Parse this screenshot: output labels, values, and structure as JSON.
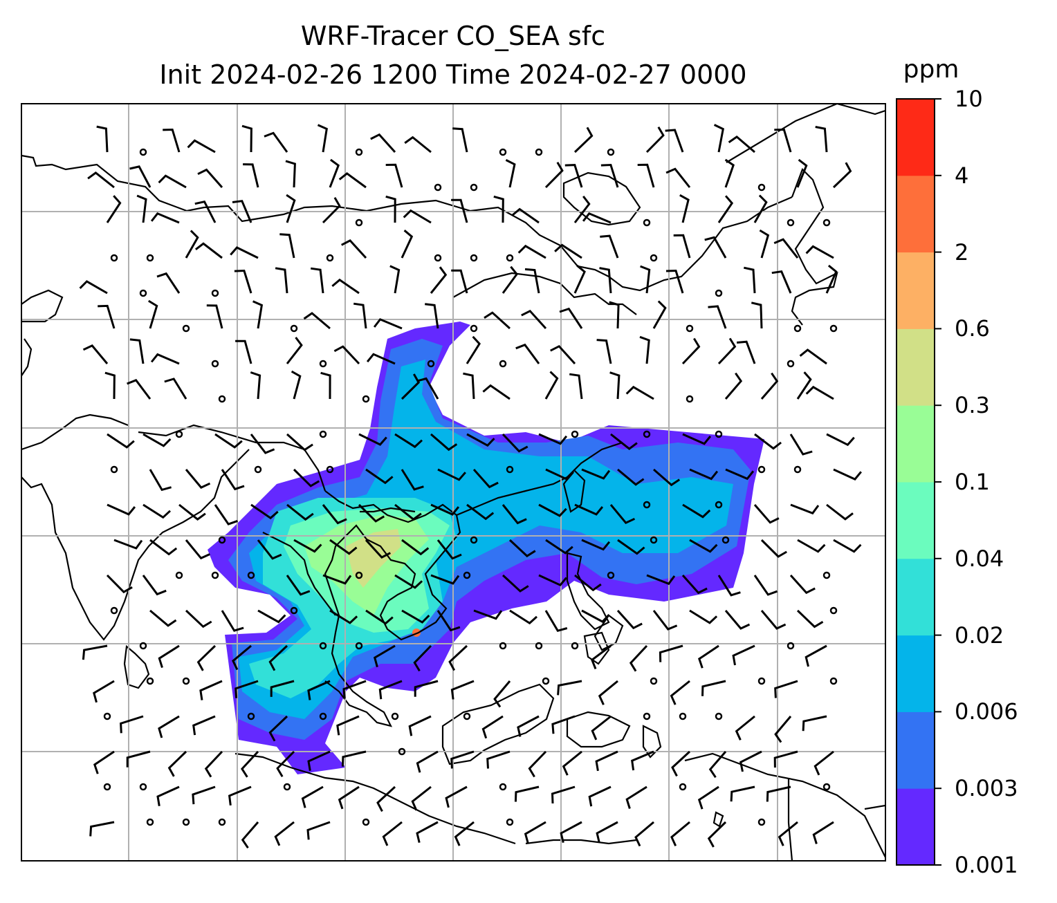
{
  "title": {
    "line1": "WRF-Tracer CO_SEA sfc",
    "line2": "Init 2024-02-26 1200 Time 2024-02-27 0000"
  },
  "colorbar": {
    "unit": "ppm",
    "levels": [
      "0.001",
      "0.003",
      "0.006",
      "0.02",
      "0.04",
      "0.1",
      "0.3",
      "0.6",
      "2",
      "4",
      "10"
    ],
    "colors": [
      "#6429ff",
      "#3373f3",
      "#04b4ea",
      "#32e0d8",
      "#6bfcbe",
      "#99fd96",
      "#d1e087",
      "#fdb064",
      "#fe6f3a",
      "#fe2a17"
    ]
  },
  "map": {
    "gridlines": true,
    "wind_barbs": true,
    "coastlines": true
  }
}
